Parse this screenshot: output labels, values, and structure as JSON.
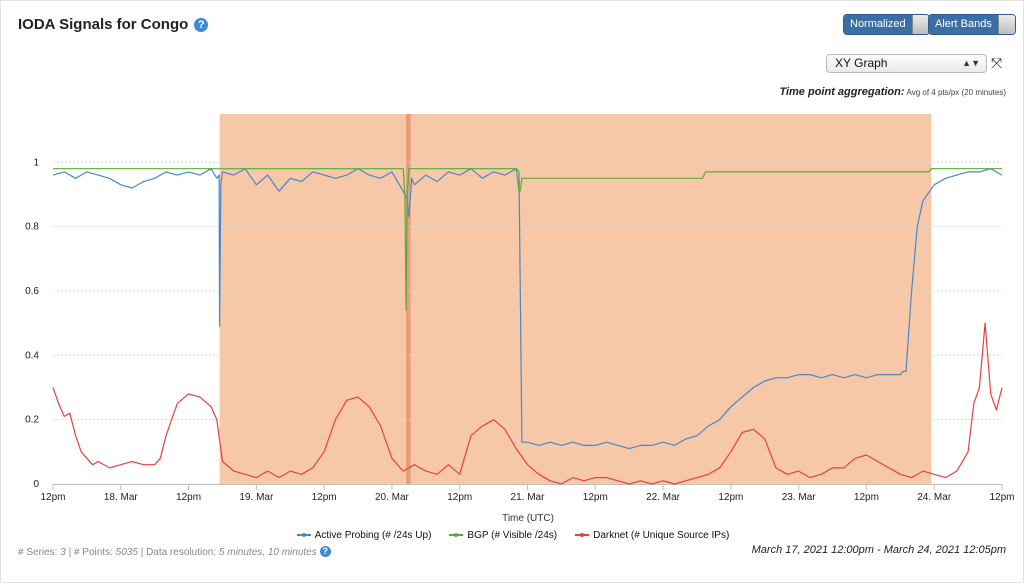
{
  "header": {
    "title": "IODA Signals for Congo",
    "help_icon": "?"
  },
  "toolbar": {
    "normalized_label": "Normalized",
    "alert_bands_label": "Alert Bands",
    "graph_type": "XY Graph",
    "fullscreen_icon": "⤧"
  },
  "aggregation": {
    "label": "Time point aggregation:",
    "value": "Avg of 4 pts/px (20 minutes)"
  },
  "legend": [
    {
      "name": "Active Probing (# /24s Up)",
      "color": "#4a86c8"
    },
    {
      "name": "BGP (# Visible /24s)",
      "color": "#5aaa3c"
    },
    {
      "name": "Darknet (# Unique Source IPs)",
      "color": "#e8413c"
    }
  ],
  "footer": {
    "series_label": "# Series:",
    "series_value": "3",
    "points_label": "# Points:",
    "points_value": "5035",
    "resolution_label": "Data resolution:",
    "resolution_value": "5 minutes, 10 minutes",
    "range": "March 17, 2021 12:00pm - March 24, 2021 12:05pm"
  },
  "chart_data": {
    "type": "line",
    "xlabel": "Time (UTC)",
    "ylabel": "",
    "x_unit": "hours since 12pm Mar 17",
    "xlim": [
      0,
      168
    ],
    "ylim": [
      0,
      1.15
    ],
    "yticks": [
      0,
      0.2,
      0.4,
      0.6,
      0.8,
      1
    ],
    "ytick_labels": [
      "0",
      "0.2",
      "0.4",
      "0.6",
      "0.8",
      "1"
    ],
    "xticks": [
      0,
      12,
      24,
      36,
      48,
      60,
      72,
      84,
      96,
      108,
      120,
      132,
      144,
      156,
      168
    ],
    "xtick_labels": [
      "12pm",
      "18. Mar",
      "12pm",
      "19. Mar",
      "12pm",
      "20. Mar",
      "12pm",
      "21. Mar",
      "12pm",
      "22. Mar",
      "12pm",
      "23. Mar",
      "12pm",
      "24. Mar",
      "12pm"
    ],
    "grid": true,
    "alert_bands": [
      {
        "from": 29.5,
        "to": 155.5,
        "color": "#f6c8a8"
      },
      {
        "from": 62.5,
        "to": 63.3,
        "color": "#e99c77"
      }
    ],
    "series": [
      {
        "name": "Active Probing (# /24s Up)",
        "color": "#4a86c8",
        "x": [
          0,
          2,
          4,
          6,
          8,
          10,
          12,
          14,
          16,
          18,
          20,
          22,
          24,
          26,
          28,
          29,
          29.4,
          29.5,
          29.7,
          30,
          32,
          34,
          36,
          38,
          40,
          42,
          44,
          46,
          48,
          50,
          52,
          54,
          56,
          58,
          60,
          62,
          62.6,
          63,
          63.5,
          64,
          66,
          68,
          70,
          72,
          74,
          76,
          78,
          80,
          82,
          82.5,
          83,
          83.5,
          84,
          86,
          88,
          90,
          92,
          94,
          96,
          98,
          100,
          102,
          104,
          106,
          108,
          110,
          112,
          114,
          116,
          118,
          120,
          122,
          124,
          126,
          128,
          130,
          132,
          134,
          136,
          138,
          140,
          142,
          144,
          146,
          148,
          150,
          150.5,
          151,
          152,
          153,
          154,
          156,
          158,
          160,
          162,
          164,
          166,
          168
        ],
        "y": [
          0.96,
          0.97,
          0.95,
          0.97,
          0.96,
          0.95,
          0.93,
          0.92,
          0.94,
          0.95,
          0.97,
          0.96,
          0.97,
          0.96,
          0.98,
          0.95,
          0.96,
          0.49,
          0.93,
          0.97,
          0.96,
          0.98,
          0.93,
          0.96,
          0.91,
          0.95,
          0.94,
          0.97,
          0.96,
          0.95,
          0.96,
          0.98,
          0.96,
          0.95,
          0.97,
          0.91,
          0.89,
          0.83,
          0.95,
          0.93,
          0.96,
          0.94,
          0.97,
          0.96,
          0.98,
          0.95,
          0.97,
          0.96,
          0.98,
          0.97,
          0.13,
          0.13,
          0.13,
          0.12,
          0.13,
          0.12,
          0.13,
          0.12,
          0.12,
          0.13,
          0.12,
          0.11,
          0.12,
          0.12,
          0.13,
          0.12,
          0.14,
          0.15,
          0.18,
          0.2,
          0.24,
          0.27,
          0.3,
          0.32,
          0.33,
          0.33,
          0.34,
          0.34,
          0.33,
          0.34,
          0.33,
          0.34,
          0.33,
          0.34,
          0.34,
          0.34,
          0.35,
          0.35,
          0.6,
          0.8,
          0.88,
          0.93,
          0.95,
          0.96,
          0.97,
          0.97,
          0.98,
          0.96
        ]
      },
      {
        "name": "BGP (# Visible /24s)",
        "color": "#5aaa3c",
        "x": [
          0,
          29.5,
          62,
          62.3,
          62.5,
          62.7,
          63,
          82,
          82.5,
          82.7,
          83,
          106,
          106.2,
          106.5,
          115,
          115.5,
          116,
          155,
          155.5,
          168
        ],
        "y": [
          0.98,
          0.98,
          0.98,
          0.9,
          0.54,
          0.9,
          0.98,
          0.98,
          0.91,
          0.91,
          0.95,
          0.95,
          0.95,
          0.95,
          0.95,
          0.97,
          0.97,
          0.97,
          0.98,
          0.98
        ]
      },
      {
        "name": "Darknet (# Unique Source IPs)",
        "color": "#e8413c",
        "x": [
          0,
          1,
          2,
          3,
          4,
          5,
          6,
          7,
          8,
          10,
          12,
          14,
          16,
          18,
          19,
          20,
          22,
          24,
          26,
          28,
          29,
          30,
          32,
          34,
          36,
          38,
          40,
          42,
          44,
          46,
          48,
          50,
          52,
          54,
          56,
          58,
          60,
          62,
          64,
          66,
          68,
          70,
          72,
          74,
          76,
          78,
          80,
          82,
          84,
          86,
          88,
          90,
          92,
          94,
          96,
          98,
          100,
          102,
          104,
          106,
          108,
          110,
          112,
          114,
          116,
          118,
          120,
          122,
          124,
          126,
          128,
          130,
          132,
          134,
          136,
          138,
          140,
          142,
          144,
          146,
          148,
          150,
          152,
          154,
          156,
          158,
          160,
          162,
          163,
          164,
          165,
          166,
          167,
          168
        ],
        "y": [
          0.3,
          0.25,
          0.21,
          0.22,
          0.15,
          0.1,
          0.08,
          0.06,
          0.07,
          0.05,
          0.06,
          0.07,
          0.06,
          0.06,
          0.08,
          0.15,
          0.25,
          0.28,
          0.27,
          0.24,
          0.2,
          0.07,
          0.04,
          0.03,
          0.02,
          0.04,
          0.02,
          0.04,
          0.03,
          0.05,
          0.1,
          0.2,
          0.26,
          0.27,
          0.24,
          0.18,
          0.08,
          0.04,
          0.06,
          0.04,
          0.03,
          0.06,
          0.03,
          0.15,
          0.18,
          0.2,
          0.17,
          0.11,
          0.06,
          0.03,
          0.01,
          0.0,
          0.02,
          0.01,
          0.02,
          0.02,
          0.01,
          0.0,
          0.01,
          0.0,
          0.01,
          0.0,
          0.01,
          0.02,
          0.03,
          0.05,
          0.1,
          0.16,
          0.17,
          0.14,
          0.05,
          0.03,
          0.04,
          0.02,
          0.03,
          0.05,
          0.05,
          0.08,
          0.09,
          0.07,
          0.05,
          0.03,
          0.02,
          0.04,
          0.03,
          0.02,
          0.04,
          0.1,
          0.25,
          0.3,
          0.5,
          0.28,
          0.23,
          0.3
        ]
      }
    ]
  }
}
